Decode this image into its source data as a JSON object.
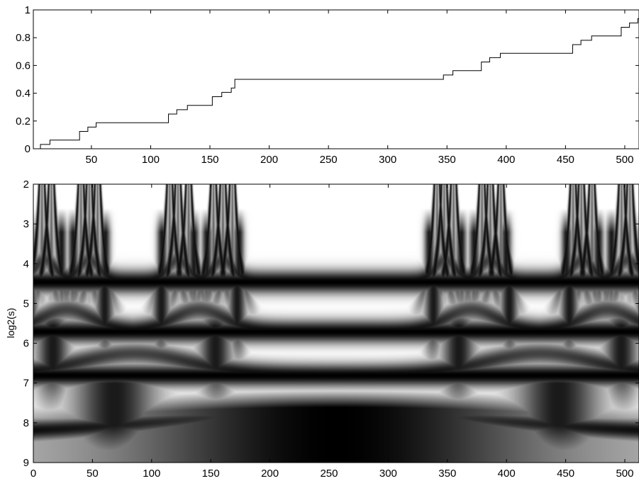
{
  "chart_data": [
    {
      "type": "line",
      "title": "",
      "xlabel": "",
      "ylabel": "",
      "xlim": [
        1,
        512
      ],
      "ylim": [
        0,
        1
      ],
      "x_ticks": [
        50,
        100,
        150,
        200,
        250,
        300,
        350,
        400,
        450,
        500
      ],
      "y_ticks": [
        "0",
        "0.2",
        "0.4",
        "0.6",
        "0.8",
        "1"
      ],
      "y_tick_values": [
        0,
        0.2,
        0.4,
        0.6,
        0.8,
        1
      ],
      "grid": false,
      "legend": "none",
      "line_color": "#000000",
      "description_of_function": "Devil's staircase (Cantor function) sampled on 512 points",
      "series": [
        {
          "step_x": [
            1,
            7,
            15,
            40,
            47,
            54,
            115,
            122,
            131,
            152,
            160,
            168,
            171,
            341,
            347,
            355,
            379,
            386,
            395,
            456,
            463,
            472,
            497,
            504,
            511
          ],
          "step_y": [
            0.0,
            0.03125,
            0.0625,
            0.125,
            0.15625,
            0.1875,
            0.25,
            0.28125,
            0.3125,
            0.375,
            0.40625,
            0.4375,
            0.5,
            0.5,
            0.53125,
            0.5625,
            0.625,
            0.65625,
            0.6875,
            0.75,
            0.78125,
            0.8125,
            0.875,
            0.90625,
            0.9375
          ]
        }
      ]
    },
    {
      "type": "heatmap",
      "title": "",
      "xlabel": "",
      "ylabel": "log2(s)",
      "xlim": [
        0,
        512
      ],
      "ylim": [
        2,
        9
      ],
      "y_reversed": true,
      "x_ticks": [
        0,
        50,
        100,
        150,
        200,
        250,
        300,
        350,
        400,
        450,
        500
      ],
      "y_ticks": [
        2,
        3,
        4,
        5,
        6,
        7,
        8,
        9
      ],
      "colormap": "gray (white = 0, black = max)",
      "grid": false,
      "features": {
        "singularity_x": [
          7,
          15,
          40,
          47,
          54,
          115,
          122,
          131,
          152,
          160,
          168,
          341,
          347,
          355,
          379,
          386,
          395,
          456,
          463,
          472,
          497,
          504
        ],
        "ridge_arch_levels": [
          {
            "log2s": 3.9,
            "centers": [
              10,
              47,
              122,
              160,
              348,
              386,
              464,
              502
            ]
          },
          {
            "log2s": 5.15,
            "centers": [
              28,
              140,
              370,
              485
            ]
          },
          {
            "log2s": 6.25,
            "centers": [
              85,
              428
            ]
          },
          {
            "log2s": 7.7,
            "centers": [
              256
            ]
          }
        ],
        "dark_band_log2s": [
          7.5,
          9
        ],
        "dark_band_center_x": 256
      }
    }
  ]
}
